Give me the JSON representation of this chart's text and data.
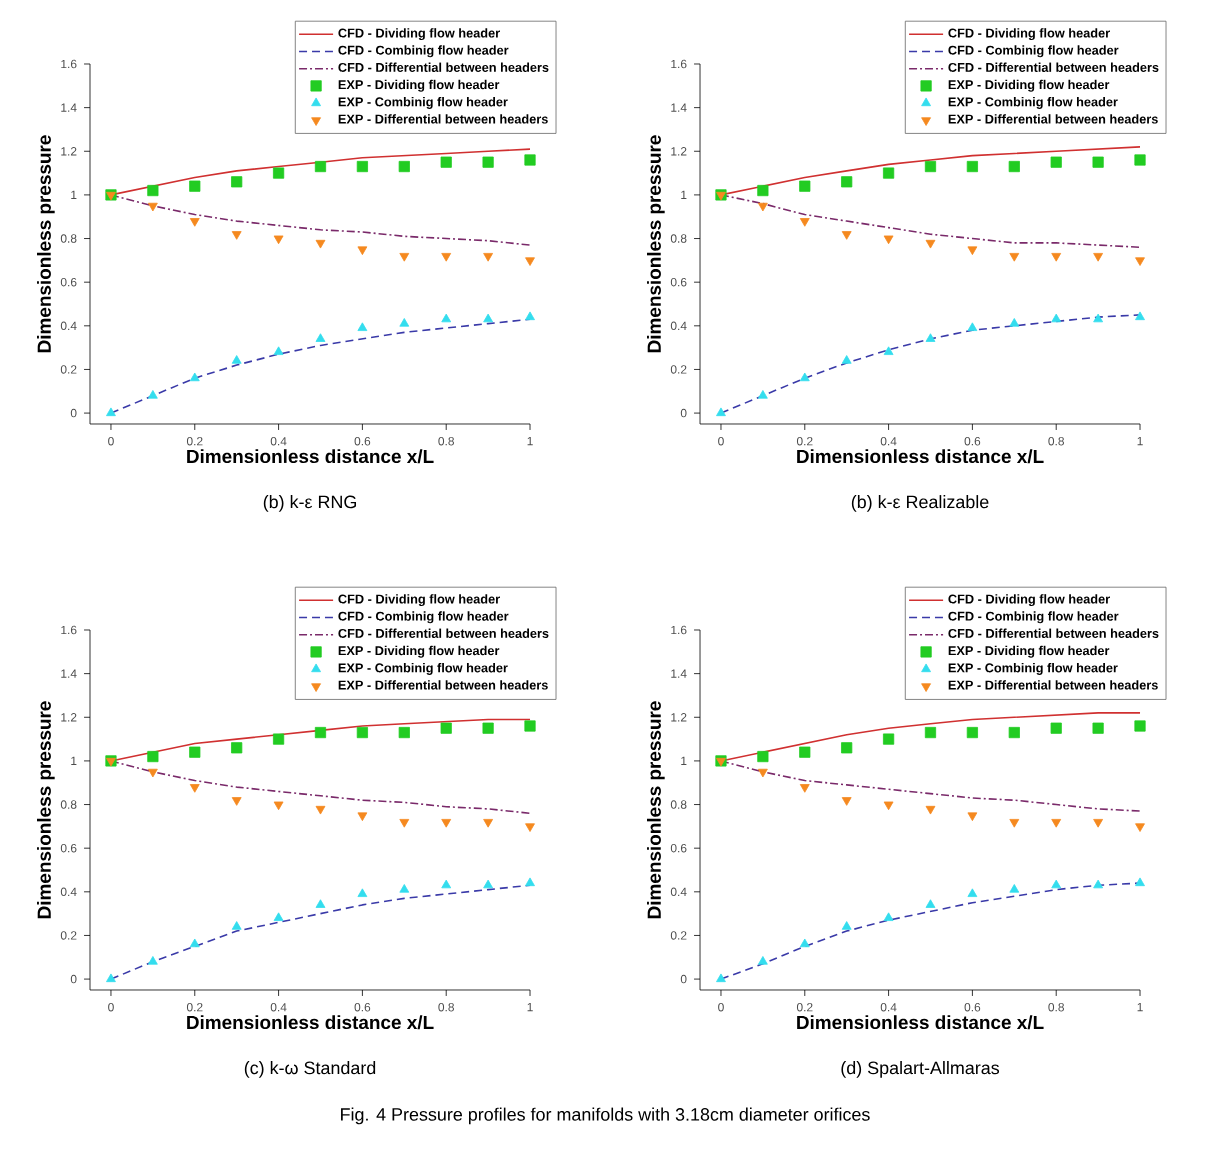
{
  "chart_data": [
    {
      "type": "line",
      "title": "(b) k-ε RNG",
      "xlabel": "Dimensionless distance x/L",
      "ylabel": "Dimensionless pressure",
      "x": [
        0,
        0.1,
        0.2,
        0.3,
        0.4,
        0.5,
        0.6,
        0.7,
        0.8,
        0.9,
        1
      ],
      "xlim": [
        -0.05,
        1
      ],
      "ylim": [
        -0.05,
        1.6
      ],
      "xticks": [
        0,
        0.2,
        0.4,
        0.6,
        0.8,
        1
      ],
      "yticks": [
        0,
        0.2,
        0.4,
        0.6,
        0.8,
        1,
        1.2,
        1.4,
        1.6
      ],
      "legend": "top right",
      "series": [
        {
          "name": "CFD - Dividing flow header",
          "color": "#d03030",
          "line_style": "solid",
          "values": [
            1.0,
            1.04,
            1.08,
            1.11,
            1.13,
            1.15,
            1.17,
            1.18,
            1.19,
            1.2,
            1.21
          ]
        },
        {
          "name": "CFD - Combinig flow header",
          "color": "#3a3aa8",
          "line_style": "dashed",
          "values": [
            0,
            0.08,
            0.16,
            0.22,
            0.27,
            0.31,
            0.34,
            0.37,
            0.39,
            0.41,
            0.43
          ]
        },
        {
          "name": "CFD - Differential between headers",
          "color": "#7a2a6a",
          "line_style": "dashdot",
          "values": [
            1.0,
            0.95,
            0.91,
            0.88,
            0.86,
            0.84,
            0.83,
            0.81,
            0.8,
            0.79,
            0.77
          ]
        },
        {
          "name": "EXP - Dividing flow header",
          "type": "scatter",
          "color": "#22cc22",
          "marker": "square",
          "values": [
            1.0,
            1.02,
            1.04,
            1.06,
            1.1,
            1.13,
            1.13,
            1.13,
            1.15,
            1.15,
            1.16
          ]
        },
        {
          "name": "EXP - Combinig flow header",
          "type": "scatter",
          "color": "#33ddee",
          "marker": "triangle",
          "values": [
            0,
            0.08,
            0.16,
            0.24,
            0.28,
            0.34,
            0.39,
            0.41,
            0.43,
            0.43,
            0.44
          ]
        },
        {
          "name": "EXP - Differential between headers",
          "type": "scatter",
          "color": "#f5891f",
          "marker": "triangle_down",
          "values": [
            1.0,
            0.95,
            0.88,
            0.82,
            0.8,
            0.78,
            0.75,
            0.72,
            0.72,
            0.72,
            0.7
          ]
        }
      ]
    },
    {
      "type": "line",
      "title": "(b) k-ε Realizable",
      "xlabel": "Dimensionless distance x/L",
      "ylabel": "Dimensionless pressure",
      "x": [
        0,
        0.1,
        0.2,
        0.3,
        0.4,
        0.5,
        0.6,
        0.7,
        0.8,
        0.9,
        1
      ],
      "xlim": [
        -0.05,
        1
      ],
      "ylim": [
        -0.05,
        1.6
      ],
      "xticks": [
        0,
        0.2,
        0.4,
        0.6,
        0.8,
        1
      ],
      "yticks": [
        0,
        0.2,
        0.4,
        0.6,
        0.8,
        1,
        1.2,
        1.4,
        1.6
      ],
      "legend": "top right",
      "series": [
        {
          "name": "CFD - Dividing flow header",
          "color": "#d03030",
          "line_style": "solid",
          "values": [
            1.0,
            1.04,
            1.08,
            1.11,
            1.14,
            1.16,
            1.18,
            1.19,
            1.2,
            1.21,
            1.22
          ]
        },
        {
          "name": "CFD - Combinig flow header",
          "color": "#3a3aa8",
          "line_style": "dashed",
          "values": [
            0,
            0.08,
            0.16,
            0.23,
            0.29,
            0.34,
            0.38,
            0.4,
            0.42,
            0.44,
            0.45
          ]
        },
        {
          "name": "CFD - Differential between headers",
          "color": "#7a2a6a",
          "line_style": "dashdot",
          "values": [
            1.0,
            0.96,
            0.91,
            0.88,
            0.85,
            0.82,
            0.8,
            0.78,
            0.78,
            0.77,
            0.76
          ]
        },
        {
          "name": "EXP - Dividing flow header",
          "type": "scatter",
          "color": "#22cc22",
          "marker": "square",
          "values": [
            1.0,
            1.02,
            1.04,
            1.06,
            1.1,
            1.13,
            1.13,
            1.13,
            1.15,
            1.15,
            1.16
          ]
        },
        {
          "name": "EXP - Combinig flow header",
          "type": "scatter",
          "color": "#33ddee",
          "marker": "triangle",
          "values": [
            0,
            0.08,
            0.16,
            0.24,
            0.28,
            0.34,
            0.39,
            0.41,
            0.43,
            0.43,
            0.44
          ]
        },
        {
          "name": "EXP - Differential between headers",
          "type": "scatter",
          "color": "#f5891f",
          "marker": "triangle_down",
          "values": [
            1.0,
            0.95,
            0.88,
            0.82,
            0.8,
            0.78,
            0.75,
            0.72,
            0.72,
            0.72,
            0.7
          ]
        }
      ]
    },
    {
      "type": "line",
      "title": "(c) k-ω Standard",
      "xlabel": "Dimensionless distance x/L",
      "ylabel": "Dimensionless pressure",
      "x": [
        0,
        0.1,
        0.2,
        0.3,
        0.4,
        0.5,
        0.6,
        0.7,
        0.8,
        0.9,
        1
      ],
      "xlim": [
        -0.05,
        1
      ],
      "ylim": [
        -0.05,
        1.6
      ],
      "xticks": [
        0,
        0.2,
        0.4,
        0.6,
        0.8,
        1
      ],
      "yticks": [
        0,
        0.2,
        0.4,
        0.6,
        0.8,
        1,
        1.2,
        1.4,
        1.6
      ],
      "legend": "top right",
      "series": [
        {
          "name": "CFD - Dividing flow header",
          "color": "#d03030",
          "line_style": "solid",
          "values": [
            1.0,
            1.04,
            1.08,
            1.1,
            1.12,
            1.14,
            1.16,
            1.17,
            1.18,
            1.19,
            1.19
          ]
        },
        {
          "name": "CFD - Combinig flow header",
          "color": "#3a3aa8",
          "line_style": "dashed",
          "values": [
            0,
            0.08,
            0.15,
            0.22,
            0.26,
            0.3,
            0.34,
            0.37,
            0.39,
            0.41,
            0.43
          ]
        },
        {
          "name": "CFD - Differential between headers",
          "color": "#7a2a6a",
          "line_style": "dashdot",
          "values": [
            1.0,
            0.95,
            0.91,
            0.88,
            0.86,
            0.84,
            0.82,
            0.81,
            0.79,
            0.78,
            0.76
          ]
        },
        {
          "name": "EXP - Dividing flow header",
          "type": "scatter",
          "color": "#22cc22",
          "marker": "square",
          "values": [
            1.0,
            1.02,
            1.04,
            1.06,
            1.1,
            1.13,
            1.13,
            1.13,
            1.15,
            1.15,
            1.16
          ]
        },
        {
          "name": "EXP - Combinig flow header",
          "type": "scatter",
          "color": "#33ddee",
          "marker": "triangle",
          "values": [
            0,
            0.08,
            0.16,
            0.24,
            0.28,
            0.34,
            0.39,
            0.41,
            0.43,
            0.43,
            0.44
          ]
        },
        {
          "name": "EXP - Differential between headers",
          "type": "scatter",
          "color": "#f5891f",
          "marker": "triangle_down",
          "values": [
            1.0,
            0.95,
            0.88,
            0.82,
            0.8,
            0.78,
            0.75,
            0.72,
            0.72,
            0.72,
            0.7
          ]
        }
      ]
    },
    {
      "type": "line",
      "title": "(d) Spalart-Allmaras",
      "xlabel": "Dimensionless distance x/L",
      "ylabel": "Dimensionless pressure",
      "x": [
        0,
        0.1,
        0.2,
        0.3,
        0.4,
        0.5,
        0.6,
        0.7,
        0.8,
        0.9,
        1
      ],
      "xlim": [
        -0.05,
        1
      ],
      "ylim": [
        -0.05,
        1.6
      ],
      "xticks": [
        0,
        0.2,
        0.4,
        0.6,
        0.8,
        1
      ],
      "yticks": [
        0,
        0.2,
        0.4,
        0.6,
        0.8,
        1,
        1.2,
        1.4,
        1.6
      ],
      "legend": "top right",
      "annotations": [
        "Fig. 4 Pressure profiles for manifolds with 3.18cm diameter orifices"
      ],
      "series": [
        {
          "name": "CFD - Dividing flow header",
          "color": "#d03030",
          "line_style": "solid",
          "values": [
            1.0,
            1.04,
            1.08,
            1.12,
            1.15,
            1.17,
            1.19,
            1.2,
            1.21,
            1.22,
            1.22
          ]
        },
        {
          "name": "CFD - Combinig flow header",
          "color": "#3a3aa8",
          "line_style": "dashed",
          "values": [
            0,
            0.07,
            0.15,
            0.22,
            0.27,
            0.31,
            0.35,
            0.38,
            0.41,
            0.43,
            0.44
          ]
        },
        {
          "name": "CFD - Differential between headers",
          "color": "#7a2a6a",
          "line_style": "dashdot",
          "values": [
            1.0,
            0.95,
            0.91,
            0.89,
            0.87,
            0.85,
            0.83,
            0.82,
            0.8,
            0.78,
            0.77
          ]
        },
        {
          "name": "EXP - Dividing flow header",
          "type": "scatter",
          "color": "#22cc22",
          "marker": "square",
          "values": [
            1.0,
            1.02,
            1.04,
            1.06,
            1.1,
            1.13,
            1.13,
            1.13,
            1.15,
            1.15,
            1.16
          ]
        },
        {
          "name": "EXP - Combinig flow header",
          "type": "scatter",
          "color": "#33ddee",
          "marker": "triangle",
          "values": [
            0,
            0.08,
            0.16,
            0.24,
            0.28,
            0.34,
            0.39,
            0.41,
            0.43,
            0.43,
            0.44
          ]
        },
        {
          "name": "EXP - Differential between headers",
          "type": "scatter",
          "color": "#f5891f",
          "marker": "triangle_down",
          "values": [
            1.0,
            0.95,
            0.88,
            0.82,
            0.8,
            0.78,
            0.75,
            0.72,
            0.72,
            0.72,
            0.7
          ]
        }
      ]
    }
  ]
}
